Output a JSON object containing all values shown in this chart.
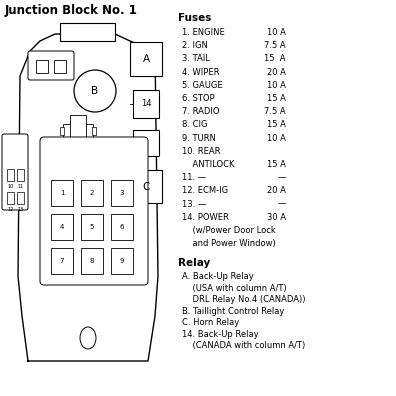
{
  "title": "Junction Block No. 1",
  "bg_color": "#ffffff",
  "outline_color": "#000000",
  "fuses_header": "Fuses",
  "fuse_entries": [
    [
      "1. ENGINE",
      "10 A"
    ],
    [
      "2. IGN",
      "7.5 A"
    ],
    [
      "3. TAIL",
      "15  A"
    ],
    [
      "4. WIPER",
      "20 A"
    ],
    [
      "5. GAUGE",
      "10 A"
    ],
    [
      "6. STOP",
      "15 A"
    ],
    [
      "7. RADIO",
      "7.5 A"
    ],
    [
      "8. CIG",
      "15 A"
    ],
    [
      "9. TURN",
      "10 A"
    ],
    [
      "10. REAR",
      ""
    ],
    [
      "    ANTILOCK",
      "15 A"
    ],
    [
      "11. —",
      "—"
    ],
    [
      "12. ECM-IG",
      "20 A"
    ],
    [
      "13. —",
      "—"
    ],
    [
      "14. POWER",
      "30 A"
    ],
    [
      "    (w/Power Door Lock",
      ""
    ],
    [
      "    and Power Window)",
      ""
    ]
  ],
  "relay_header": "Relay",
  "relay_lines": [
    "A. Back-Up Relay",
    "    (USA with column A/T)",
    "    DRL Relay No.4 (CANADA))",
    "B. Taillight Control Relay",
    "C. Horn Relay",
    "14. Back-Up Relay",
    "    (CANADA with column A/T)"
  ],
  "fuse_grid": [
    [
      "1",
      "2",
      "3"
    ],
    [
      "4",
      "5",
      "6"
    ],
    [
      "7",
      "8",
      "9"
    ]
  ],
  "side_labels": [
    [
      "10",
      "11"
    ],
    [
      "12",
      "13"
    ]
  ]
}
